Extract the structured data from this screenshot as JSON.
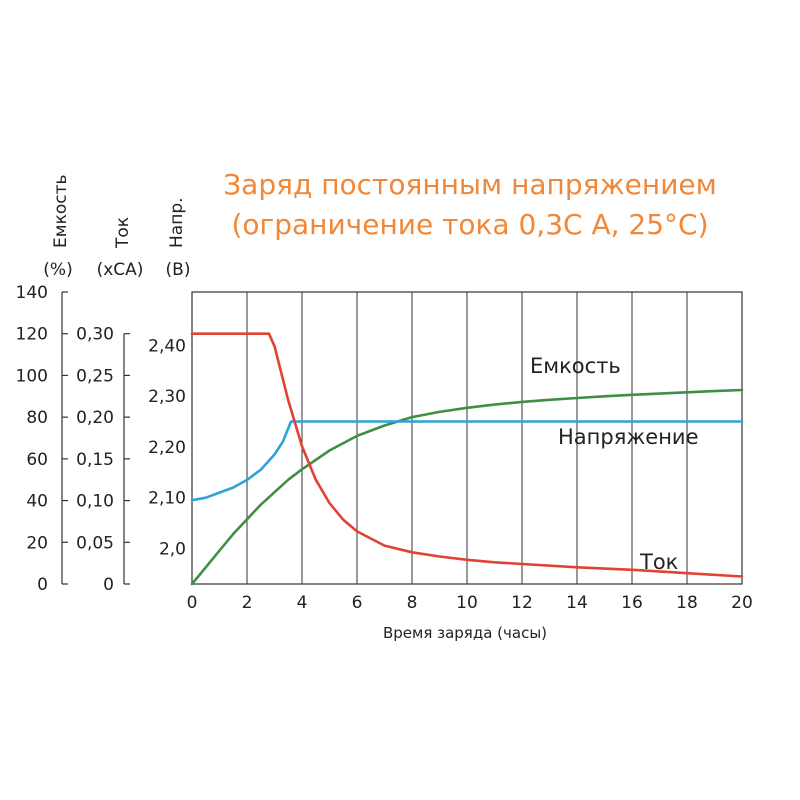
{
  "title": {
    "line1": "Заряд постоянным напряжением",
    "line2": "(ограничение тока 0,3С А, 25°С)"
  },
  "colors": {
    "title": "#f0883a",
    "capacity": "#3f8f45",
    "voltage": "#2ea3d6",
    "current": "#e04233",
    "grid": "#333333"
  },
  "chart_data": {
    "type": "line",
    "xlabel": "Время заряда (часы)",
    "xlim": [
      0,
      20
    ],
    "x_ticks": [
      "0",
      "2",
      "4",
      "6",
      "8",
      "10",
      "12",
      "14",
      "16",
      "18",
      "20"
    ],
    "grid": true,
    "axes": {
      "capacity": {
        "name": "Емкость",
        "unit": "(%)",
        "ylim": [
          0,
          140
        ],
        "ticks": [
          {
            "v": 0,
            "label": "0"
          },
          {
            "v": 20,
            "label": "20"
          },
          {
            "v": 40,
            "label": "40"
          },
          {
            "v": 60,
            "label": "60"
          },
          {
            "v": 80,
            "label": "80"
          },
          {
            "v": 100,
            "label": "100"
          },
          {
            "v": 120,
            "label": "120"
          },
          {
            "v": 140,
            "label": "140"
          }
        ]
      },
      "current": {
        "name": "Ток",
        "unit": "(хСА)",
        "ylim": [
          0,
          0.35
        ],
        "ticks": [
          {
            "v": 0,
            "label": "0"
          },
          {
            "v": 0.05,
            "label": "0,05"
          },
          {
            "v": 0.1,
            "label": "0,10"
          },
          {
            "v": 0.15,
            "label": "0,15"
          },
          {
            "v": 0.2,
            "label": "0,20"
          },
          {
            "v": 0.25,
            "label": "0,25"
          },
          {
            "v": 0.3,
            "label": "0,30"
          }
        ]
      },
      "voltage": {
        "name": "Напр.",
        "unit": "(В)",
        "ylim": [
          1.93,
          2.505
        ],
        "ticks": [
          {
            "v": 2.0,
            "label": "2,0"
          },
          {
            "v": 2.1,
            "label": "2,10"
          },
          {
            "v": 2.2,
            "label": "2,20"
          },
          {
            "v": 2.3,
            "label": "2,30"
          },
          {
            "v": 2.4,
            "label": "2,40"
          }
        ]
      }
    },
    "series": [
      {
        "name": "Емкость",
        "axis": "capacity",
        "color": "#3f8f45",
        "x": [
          0,
          0.5,
          1,
          1.5,
          2,
          2.5,
          3,
          3.5,
          4,
          5,
          6,
          7,
          8,
          9,
          10,
          11,
          12,
          13,
          14,
          15,
          16,
          17,
          18,
          19,
          20
        ],
        "y": [
          0,
          8,
          16,
          24,
          31,
          38,
          44,
          50,
          55,
          64,
          71,
          76,
          80,
          82.5,
          84.5,
          86,
          87.3,
          88.3,
          89.2,
          90,
          90.7,
          91.3,
          91.9,
          92.5,
          93
        ]
      },
      {
        "name": "Напряжение",
        "axis": "voltage",
        "color": "#2ea3d6",
        "x": [
          0,
          0.5,
          1,
          1.5,
          2,
          2.5,
          3,
          3.3,
          3.6,
          4,
          20
        ],
        "y": [
          2.095,
          2.1,
          2.11,
          2.12,
          2.135,
          2.155,
          2.185,
          2.21,
          2.25,
          2.25,
          2.25
        ]
      },
      {
        "name": "Ток",
        "axis": "current",
        "color": "#e04233",
        "x": [
          0,
          1,
          2,
          2.8,
          3,
          3.5,
          4,
          4.5,
          5,
          5.5,
          6,
          7,
          8,
          9,
          10,
          11,
          12,
          14,
          16,
          18,
          20
        ],
        "y": [
          0.3,
          0.3,
          0.3,
          0.3,
          0.285,
          0.22,
          0.165,
          0.125,
          0.097,
          0.077,
          0.063,
          0.046,
          0.038,
          0.033,
          0.029,
          0.026,
          0.024,
          0.02,
          0.017,
          0.013,
          0.009
        ]
      }
    ]
  }
}
